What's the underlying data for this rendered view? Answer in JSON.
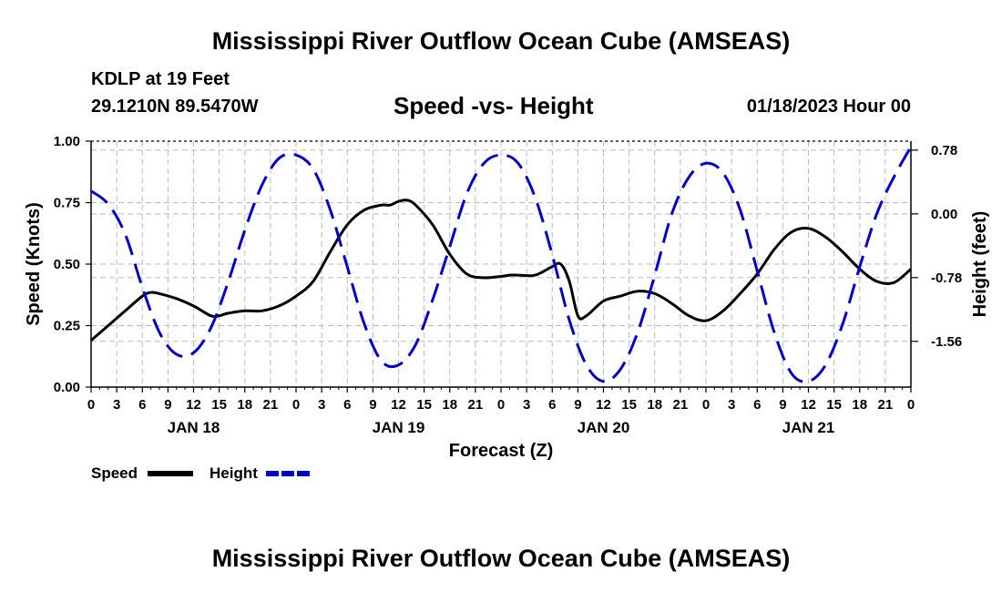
{
  "header": {
    "title": "Mississippi River Outflow Ocean Cube (AMSEAS)",
    "station": "KDLP at 19 Feet",
    "coordinates": "29.1210N  89.5470W",
    "subtitle": "Speed -vs- Height",
    "datetime": "01/18/2023 Hour 00"
  },
  "footer": {
    "title": "Mississippi River Outflow Ocean Cube (AMSEAS)"
  },
  "colors": {
    "speed": "#000000",
    "height": "#0000cc",
    "grid": "#bbbbbb"
  },
  "chart_data": {
    "type": "line",
    "title": "Speed -vs- Height",
    "xlabel": "Forecast (Z)",
    "ylabel": "Speed (Knots)",
    "y2label": "Height (feet)",
    "xlim": [
      0,
      96
    ],
    "ylim": [
      0,
      1.0
    ],
    "y2lim": [
      -2.12,
      0.89
    ],
    "grid": true,
    "x_ticks": [
      0,
      3,
      6,
      9,
      12,
      15,
      18,
      21,
      24,
      27,
      30,
      33,
      36,
      39,
      42,
      45,
      48,
      51,
      54,
      57,
      60,
      63,
      66,
      69,
      72,
      75,
      78,
      81,
      84,
      87,
      90,
      93,
      96
    ],
    "x_tick_labels": [
      "0",
      "3",
      "6",
      "9",
      "12",
      "15",
      "18",
      "21",
      "0",
      "3",
      "6",
      "9",
      "12",
      "15",
      "18",
      "21",
      "0",
      "3",
      "6",
      "9",
      "12",
      "15",
      "18",
      "21",
      "0",
      "3",
      "6",
      "9",
      "12",
      "15",
      "18",
      "21",
      "0"
    ],
    "y_ticks": [
      0,
      0.25,
      0.5,
      0.75,
      1.0
    ],
    "y_tick_labels": [
      "0.00",
      "0.25",
      "0.50",
      "0.75",
      "1.00"
    ],
    "y2_ticks": [
      0.78,
      0.0,
      -0.78,
      -1.56
    ],
    "y2_tick_labels": [
      "0.78",
      "0.00",
      "-0.78",
      "-1.56"
    ],
    "day_labels": [
      {
        "x": 12,
        "label": "JAN 18"
      },
      {
        "x": 36,
        "label": "JAN 19"
      },
      {
        "x": 60,
        "label": "JAN 20"
      },
      {
        "x": 84,
        "label": "JAN 21"
      }
    ],
    "series": [
      {
        "name": "Speed",
        "axis": "left",
        "style": "solid",
        "x": [
          0,
          2,
          4,
          6,
          7,
          8,
          10,
          12,
          14,
          15,
          16,
          18,
          20,
          22,
          24,
          26,
          28,
          30,
          32,
          34,
          35,
          36,
          37,
          38,
          40,
          42,
          44,
          46,
          48,
          49,
          50,
          52,
          54,
          55,
          56,
          57,
          58,
          60,
          62,
          64,
          66,
          68,
          70,
          72,
          74,
          76,
          78,
          80,
          82,
          84,
          86,
          88,
          90,
          92,
          94,
          96
        ],
        "y": [
          0.19,
          0.25,
          0.31,
          0.37,
          0.385,
          0.38,
          0.36,
          0.33,
          0.29,
          0.29,
          0.3,
          0.31,
          0.31,
          0.33,
          0.37,
          0.43,
          0.55,
          0.66,
          0.72,
          0.74,
          0.74,
          0.755,
          0.76,
          0.74,
          0.66,
          0.54,
          0.46,
          0.445,
          0.45,
          0.455,
          0.455,
          0.455,
          0.49,
          0.5,
          0.43,
          0.29,
          0.29,
          0.35,
          0.37,
          0.39,
          0.38,
          0.34,
          0.29,
          0.27,
          0.31,
          0.38,
          0.46,
          0.56,
          0.63,
          0.645,
          0.61,
          0.55,
          0.48,
          0.43,
          0.425,
          0.48
        ]
      },
      {
        "name": "Height",
        "axis": "right",
        "style": "dashed",
        "x": [
          0,
          2,
          4,
          6,
          8,
          10,
          12,
          14,
          16,
          18,
          20,
          22,
          24,
          26,
          28,
          30,
          32,
          34,
          36,
          38,
          40,
          42,
          44,
          46,
          48,
          50,
          52,
          54,
          56,
          58,
          60,
          62,
          64,
          66,
          68,
          70,
          72,
          74,
          76,
          78,
          80,
          82,
          84,
          86,
          88,
          90,
          92,
          94,
          96
        ],
        "y": [
          0.28,
          0.12,
          -0.25,
          -0.9,
          -1.45,
          -1.72,
          -1.7,
          -1.4,
          -0.85,
          -0.2,
          0.35,
          0.68,
          0.72,
          0.55,
          0.05,
          -0.65,
          -1.35,
          -1.8,
          -1.85,
          -1.6,
          -1.05,
          -0.4,
          0.25,
          0.62,
          0.72,
          0.62,
          0.2,
          -0.5,
          -1.3,
          -1.85,
          -2.05,
          -1.9,
          -1.45,
          -0.75,
          0.0,
          0.45,
          0.62,
          0.5,
          0.05,
          -0.7,
          -1.45,
          -1.95,
          -2.05,
          -1.85,
          -1.35,
          -0.65,
          0.0,
          0.45,
          0.82
        ]
      }
    ]
  },
  "legend": {
    "position": "bottom-left",
    "items": [
      {
        "label": "Speed",
        "style": "solid"
      },
      {
        "label": "Height",
        "style": "dashed"
      }
    ]
  }
}
